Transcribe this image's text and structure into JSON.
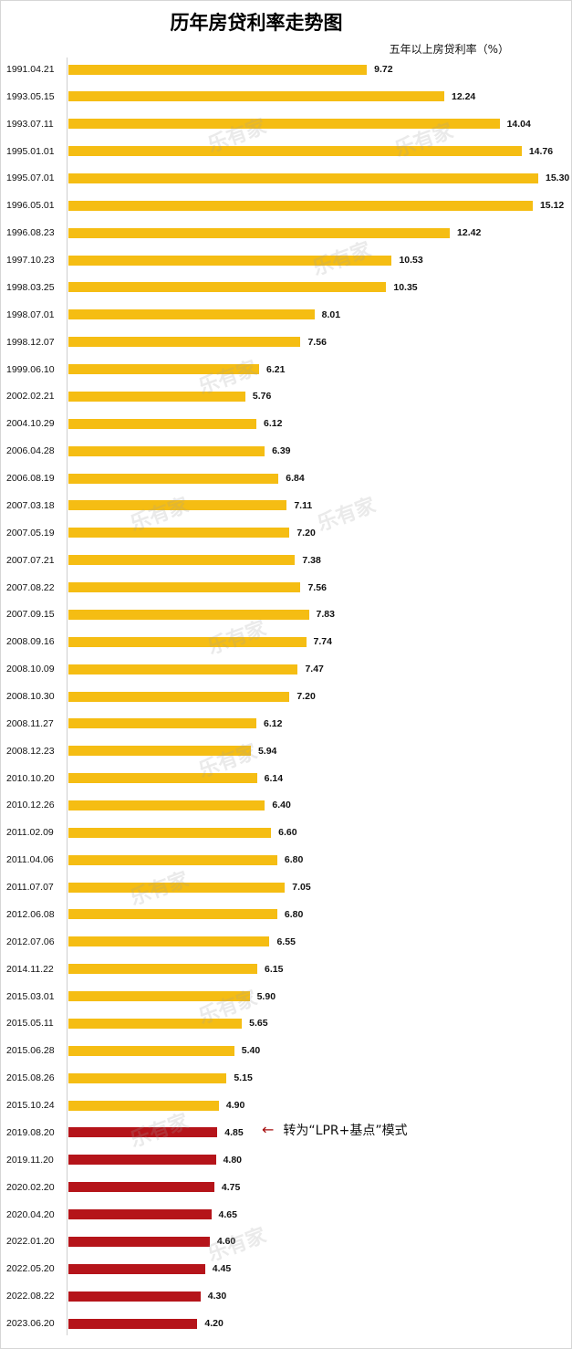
{
  "title": "历年房贷利率走势图",
  "unit_label": "五年以上房贷利率（%）",
  "annotation": {
    "arrow": "←",
    "text": "转为“LPR+基点”模式"
  },
  "colors": {
    "pre_lpr": "#f5bd13",
    "lpr": "#b5141a"
  },
  "chart_data": {
    "type": "bar",
    "orientation": "horizontal",
    "title": "历年房贷利率走势图",
    "ylabel": "五年以上房贷利率（%）",
    "xlim": [
      0,
      15.3
    ],
    "categories": [
      "1991.04.21",
      "1993.05.15",
      "1993.07.11",
      "1995.01.01",
      "1995.07.01",
      "1996.05.01",
      "1996.08.23",
      "1997.10.23",
      "1998.03.25",
      "1998.07.01",
      "1998.12.07",
      "1999.06.10",
      "2002.02.21",
      "2004.10.29",
      "2006.04.28",
      "2006.08.19",
      "2007.03.18",
      "2007.05.19",
      "2007.07.21",
      "2007.08.22",
      "2007.09.15",
      "2008.09.16",
      "2008.10.09",
      "2008.10.30",
      "2008.11.27",
      "2008.12.23",
      "2010.10.20",
      "2010.12.26",
      "2011.02.09",
      "2011.04.06",
      "2011.07.07",
      "2012.06.08",
      "2012.07.06",
      "2014.11.22",
      "2015.03.01",
      "2015.05.11",
      "2015.06.28",
      "2015.08.26",
      "2015.10.24",
      "2019.08.20",
      "2019.11.20",
      "2020.02.20",
      "2020.04.20",
      "2022.01.20",
      "2022.05.20",
      "2022.08.22",
      "2023.06.20"
    ],
    "value_labels": [
      "9.72",
      "12.24",
      "14.04",
      "14.76",
      "15.30",
      "15.12",
      "12.42",
      "10.53",
      "10.35",
      "8.01",
      "7.56",
      "6.21",
      "5.76",
      "6.12",
      "6.39",
      "6.84",
      "7.11",
      "7.20",
      "7.38",
      "7.56",
      "7.83",
      "7.74",
      "7.47",
      "7.20",
      "6.12",
      "5.94",
      "6.14",
      "6.40",
      "6.60",
      "6.80",
      "7.05",
      "6.80",
      "6.55",
      "6.15",
      "5.90",
      "5.65",
      "5.40",
      "5.15",
      "4.90",
      "4.85",
      "4.80",
      "4.75",
      "4.65",
      "4.60",
      "4.45",
      "4.30",
      "4.20"
    ],
    "values": [
      9.72,
      12.24,
      14.04,
      14.76,
      15.3,
      15.12,
      12.42,
      10.53,
      10.35,
      8.01,
      7.56,
      6.21,
      5.76,
      6.12,
      6.39,
      6.84,
      7.11,
      7.2,
      7.38,
      7.56,
      7.83,
      7.74,
      7.47,
      7.2,
      6.12,
      5.94,
      6.14,
      6.4,
      6.6,
      6.8,
      7.05,
      6.8,
      6.55,
      6.15,
      5.9,
      5.65,
      5.4,
      5.15,
      4.9,
      4.85,
      4.8,
      4.75,
      4.65,
      4.6,
      4.45,
      4.3,
      4.2
    ],
    "lpr_start_index": 39,
    "legend": "none",
    "grid": false
  },
  "watermark": "乐有家"
}
